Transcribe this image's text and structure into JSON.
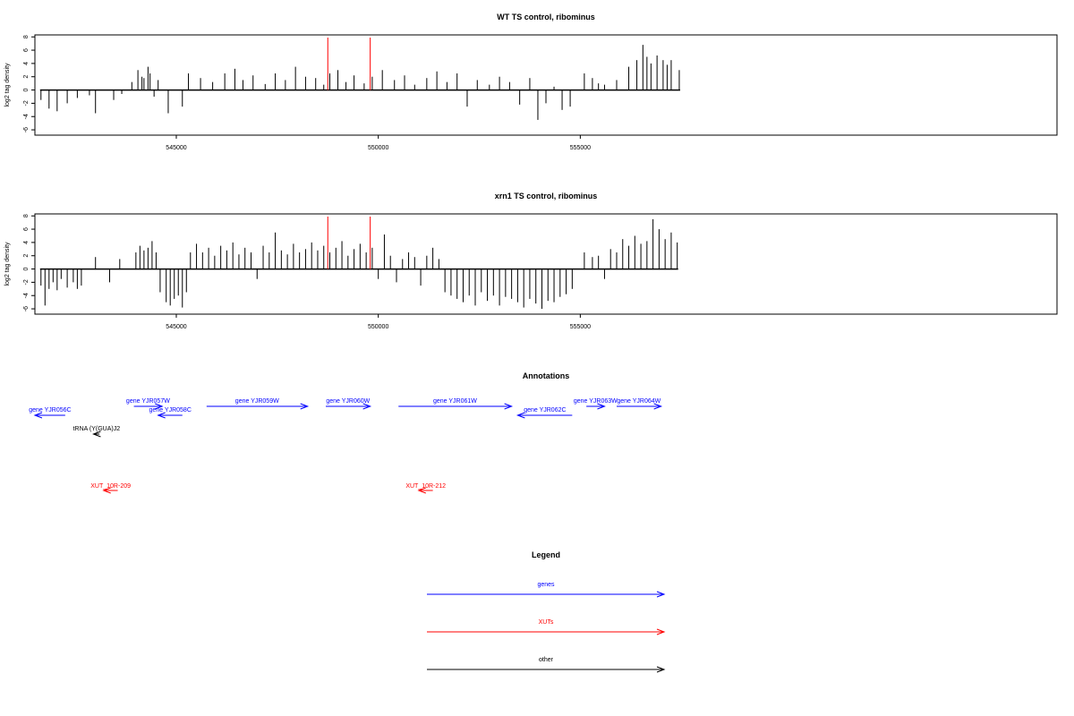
{
  "chart_data": [
    {
      "type": "bar",
      "title": "WT TS control, ribominus",
      "ylabel": "log2 tag density",
      "xlabel": "",
      "xlim": [
        541500,
        566800
      ],
      "ylim": [
        -6.8,
        8.3
      ],
      "yticks": [
        -6,
        -4,
        -2,
        0,
        2,
        4,
        6,
        8
      ],
      "xticks": [
        545000,
        550000,
        555000
      ],
      "xtick_labels": [
        "545000",
        "550000",
        "555000"
      ],
      "bar_color": "#000000",
      "marker_color": "#ff0000",
      "markers": [
        548750,
        549800
      ],
      "series": [
        {
          "x": [
            541650,
            541850,
            542050,
            542300,
            542550,
            542850,
            543000,
            543450,
            543650,
            543900,
            544050,
            544150,
            544200,
            544300,
            544350,
            544450,
            544550,
            544800,
            545150,
            545300,
            545600,
            545900,
            546200,
            546450,
            546650,
            546900,
            547200,
            547450,
            547700,
            547950,
            548200,
            548450,
            548650,
            548800,
            549000,
            549200,
            549400,
            549650,
            549850,
            550100,
            550400,
            550650,
            550900,
            551200,
            551450,
            551700,
            551950,
            552200,
            552450,
            552750,
            553000,
            553250,
            553500,
            553750,
            553950,
            554150,
            554350,
            554550,
            554750,
            555100,
            555300,
            555450,
            555600,
            555900,
            556200,
            556400,
            556550,
            556650,
            556750,
            556900,
            557050,
            557150,
            557250,
            557450
          ],
          "values": [
            -1.5,
            -2.8,
            -3.2,
            -2.0,
            -1.2,
            -0.8,
            -3.5,
            -1.5,
            -0.6,
            1.2,
            3.0,
            2.0,
            1.8,
            3.5,
            2.5,
            -1.0,
            1.5,
            -3.5,
            -2.5,
            2.5,
            1.8,
            1.2,
            2.5,
            3.2,
            1.5,
            2.2,
            0.9,
            2.5,
            1.5,
            3.5,
            2.0,
            1.8,
            0.8,
            2.5,
            3.0,
            1.2,
            2.2,
            1.0,
            2.0,
            3.0,
            1.5,
            2.2,
            0.8,
            1.8,
            2.8,
            1.2,
            2.5,
            -2.5,
            1.5,
            0.8,
            2.0,
            1.2,
            -2.2,
            1.8,
            -4.5,
            -2.0,
            0.5,
            -3.0,
            -2.5,
            2.5,
            1.8,
            1.0,
            0.8,
            1.5,
            3.5,
            4.5,
            6.8,
            5.0,
            4.0,
            5.2,
            4.5,
            3.8,
            4.5,
            3.0
          ]
        }
      ]
    },
    {
      "type": "bar",
      "title": "xrn1 TS control, ribominus",
      "ylabel": "log2 tag density",
      "xlabel": "",
      "xlim": [
        541500,
        566800
      ],
      "ylim": [
        -6.8,
        8.3
      ],
      "yticks": [
        -6,
        -4,
        -2,
        0,
        2,
        4,
        6,
        8
      ],
      "xticks": [
        545000,
        550000,
        555000
      ],
      "xtick_labels": [
        "545000",
        "550000",
        "555000"
      ],
      "bar_color": "#000000",
      "marker_color": "#ff0000",
      "markers": [
        548750,
        549800
      ],
      "series": [
        {
          "x": [
            541650,
            541750,
            541850,
            541950,
            542050,
            542150,
            542300,
            542450,
            542550,
            542650,
            543000,
            543350,
            543600,
            544000,
            544100,
            544200,
            544300,
            544400,
            544500,
            544600,
            544750,
            544850,
            544950,
            545050,
            545150,
            545250,
            545350,
            545500,
            545650,
            545800,
            545950,
            546100,
            546250,
            546400,
            546550,
            546700,
            546850,
            547000,
            547150,
            547300,
            547450,
            547600,
            547750,
            547900,
            548050,
            548200,
            548350,
            548500,
            548650,
            548800,
            548950,
            549100,
            549250,
            549400,
            549550,
            549700,
            549850,
            550000,
            550150,
            550300,
            550450,
            550600,
            550750,
            550900,
            551050,
            551200,
            551350,
            551500,
            551650,
            551800,
            551950,
            552100,
            552250,
            552400,
            552550,
            552700,
            552850,
            553000,
            553150,
            553300,
            553450,
            553600,
            553750,
            553900,
            554050,
            554200,
            554350,
            554500,
            554650,
            554800,
            555100,
            555300,
            555450,
            555600,
            555750,
            555900,
            556050,
            556200,
            556350,
            556500,
            556650,
            556800,
            556950,
            557100,
            557250,
            557400
          ],
          "values": [
            -2.5,
            -5.5,
            -3.0,
            -2.0,
            -3.2,
            -1.5,
            -2.8,
            -2.0,
            -3.0,
            -2.5,
            1.8,
            -2.0,
            1.5,
            2.5,
            3.5,
            2.8,
            3.2,
            4.2,
            2.5,
            -3.5,
            -5.0,
            -5.5,
            -4.5,
            -4.0,
            -5.8,
            -3.5,
            2.5,
            3.8,
            2.5,
            3.2,
            2.0,
            3.5,
            2.8,
            4.0,
            2.2,
            3.2,
            2.5,
            -1.5,
            3.5,
            2.5,
            5.5,
            2.8,
            2.2,
            3.8,
            2.5,
            3.0,
            4.0,
            2.8,
            3.5,
            2.5,
            3.2,
            4.2,
            2.0,
            3.0,
            3.8,
            2.5,
            3.2,
            -1.5,
            5.2,
            2.0,
            -2.0,
            1.5,
            2.5,
            1.8,
            -2.5,
            2.0,
            3.2,
            1.5,
            -3.5,
            -4.0,
            -4.5,
            -5.0,
            -4.0,
            -5.5,
            -3.5,
            -4.8,
            -4.0,
            -5.5,
            -4.2,
            -4.5,
            -5.0,
            -5.8,
            -4.5,
            -5.2,
            -6.0,
            -4.8,
            -5.0,
            -4.2,
            -3.8,
            -3.0,
            2.5,
            1.8,
            2.0,
            -1.5,
            3.0,
            2.5,
            4.5,
            3.5,
            5.0,
            3.8,
            4.2,
            7.5,
            6.0,
            4.5,
            5.5,
            4.0
          ]
        }
      ]
    }
  ],
  "annotations": {
    "title": "Annotations",
    "items": [
      {
        "label": "gene YJR056C",
        "start": 541500,
        "end": 542250,
        "direction": "left",
        "color": "#0000ff",
        "row": 1
      },
      {
        "label": "gene YJR057W",
        "start": 543950,
        "end": 544650,
        "direction": "right",
        "color": "#0000ff",
        "row": 0
      },
      {
        "label": "gene YJR058C",
        "start": 544550,
        "end": 545150,
        "direction": "left",
        "color": "#0000ff",
        "row": 1
      },
      {
        "label": "gene YJR059W",
        "start": 545750,
        "end": 548250,
        "direction": "right",
        "color": "#0000ff",
        "row": 0
      },
      {
        "label": "gene YJR060W",
        "start": 548700,
        "end": 549800,
        "direction": "right",
        "color": "#0000ff",
        "row": 0
      },
      {
        "label": "gene YJR061W",
        "start": 550500,
        "end": 553300,
        "direction": "right",
        "color": "#0000ff",
        "row": 0
      },
      {
        "label": "gene YJR062C",
        "start": 553450,
        "end": 554800,
        "direction": "left",
        "color": "#0000ff",
        "row": 1
      },
      {
        "label": "gene YJR063W",
        "start": 555150,
        "end": 555600,
        "direction": "right",
        "color": "#0000ff",
        "row": 0
      },
      {
        "label": "gene YJR064W",
        "start": 555900,
        "end": 557000,
        "direction": "right",
        "color": "#0000ff",
        "row": 0
      },
      {
        "label": "tRNA (Y(GUA)J2",
        "start": 542950,
        "end": 543100,
        "direction": "left",
        "color": "#000000",
        "row": 2
      },
      {
        "label": "XUT_10R-209",
        "start": 543200,
        "end": 543550,
        "direction": "left",
        "color": "#ff0000",
        "row": 3
      },
      {
        "label": "XUT_10R-212",
        "start": 551000,
        "end": 551350,
        "direction": "left",
        "color": "#ff0000",
        "row": 3
      }
    ]
  },
  "legend": {
    "title": "Legend",
    "items": [
      {
        "label": "genes",
        "color": "#0000ff"
      },
      {
        "label": "XUTs",
        "color": "#ff0000"
      },
      {
        "label": "other",
        "color": "#000000"
      }
    ]
  }
}
